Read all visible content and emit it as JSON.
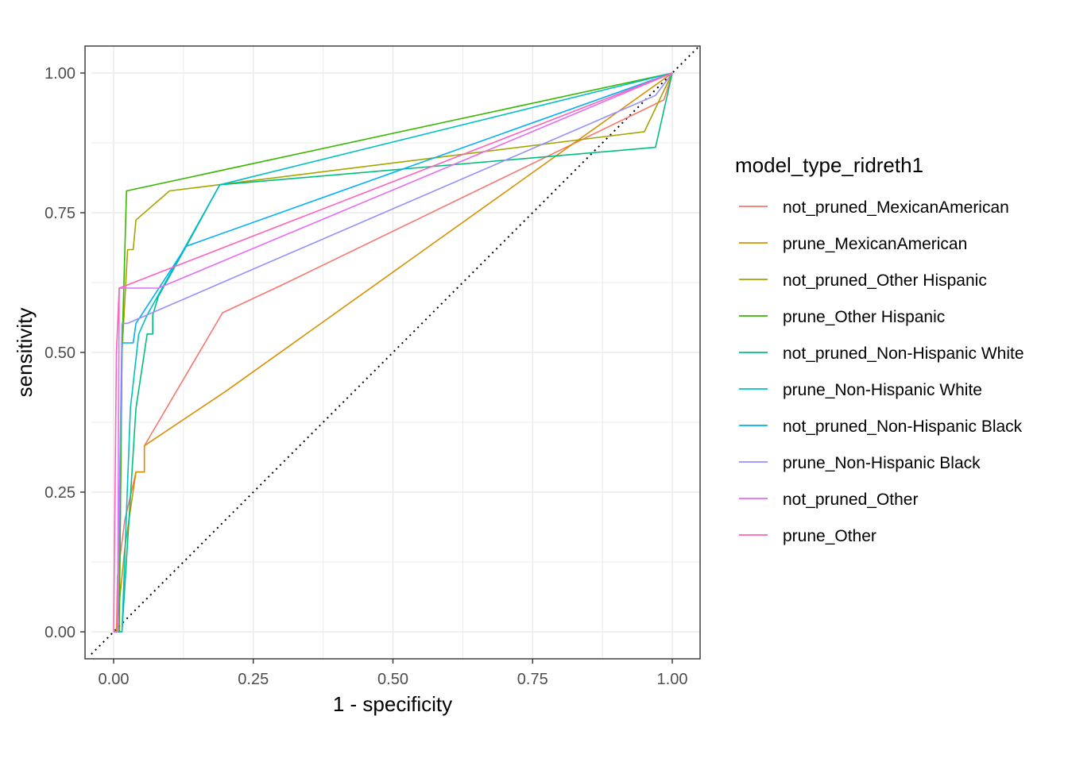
{
  "chart_data": {
    "type": "line",
    "title": "",
    "xlabel": "1 - specificity",
    "ylabel": "sensitivity",
    "xlim": [
      -0.04,
      1.05
    ],
    "ylim": [
      -0.05,
      1.05
    ],
    "x_ticks": [
      "0.00",
      "0.25",
      "0.50",
      "0.75",
      "1.00"
    ],
    "y_ticks": [
      "0.00",
      "0.25",
      "0.50",
      "0.75",
      "1.00"
    ],
    "grid": true,
    "reference_line": "diagonal dotted",
    "legend": {
      "title": "model_type_ridreth1",
      "position": "right"
    },
    "series": [
      {
        "name": "not_pruned_MexicanAmerican",
        "color": "#F8766D",
        "points": [
          [
            0.0,
            0.0
          ],
          [
            0.005,
            0.0
          ],
          [
            0.007,
            0.1
          ],
          [
            0.02,
            0.2
          ],
          [
            0.04,
            0.286
          ],
          [
            0.055,
            0.286
          ],
          [
            0.055,
            0.333
          ],
          [
            0.195,
            0.571
          ],
          [
            0.3,
            0.62
          ],
          [
            0.985,
            0.952
          ],
          [
            1.0,
            1.0
          ]
        ]
      },
      {
        "name": "prune_MexicanAmerican",
        "color": "#D89000",
        "points": [
          [
            0.0,
            0.0
          ],
          [
            0.005,
            0.0
          ],
          [
            0.02,
            0.15
          ],
          [
            0.04,
            0.286
          ],
          [
            0.055,
            0.286
          ],
          [
            0.055,
            0.333
          ],
          [
            0.2,
            0.43
          ],
          [
            1.0,
            1.0
          ]
        ]
      },
      {
        "name": "not_pruned_Other Hispanic",
        "color": "#A3A500",
        "points": [
          [
            0.0,
            0.0
          ],
          [
            0.01,
            0.0
          ],
          [
            0.015,
            0.5
          ],
          [
            0.025,
            0.684
          ],
          [
            0.035,
            0.684
          ],
          [
            0.04,
            0.737
          ],
          [
            0.1,
            0.789
          ],
          [
            0.95,
            0.895
          ],
          [
            1.0,
            1.0
          ]
        ]
      },
      {
        "name": "prune_Other Hispanic",
        "color": "#39B600",
        "points": [
          [
            0.0,
            0.0
          ],
          [
            0.01,
            0.0
          ],
          [
            0.015,
            0.5
          ],
          [
            0.023,
            0.789
          ],
          [
            1.0,
            1.0
          ]
        ]
      },
      {
        "name": "not_pruned_Non-Hispanic White",
        "color": "#00BF7D",
        "points": [
          [
            0.0,
            0.0
          ],
          [
            0.015,
            0.0
          ],
          [
            0.04,
            0.4
          ],
          [
            0.06,
            0.533
          ],
          [
            0.07,
            0.533
          ],
          [
            0.07,
            0.567
          ],
          [
            0.08,
            0.6
          ],
          [
            0.13,
            0.69
          ],
          [
            0.19,
            0.8
          ],
          [
            0.97,
            0.867
          ],
          [
            1.0,
            1.0
          ]
        ]
      },
      {
        "name": "prune_Non-Hispanic White",
        "color": "#00BFC4",
        "points": [
          [
            0.0,
            0.0
          ],
          [
            0.015,
            0.0
          ],
          [
            0.03,
            0.4
          ],
          [
            0.045,
            0.533
          ],
          [
            0.06,
            0.567
          ],
          [
            0.19,
            0.8
          ],
          [
            1.0,
            1.0
          ]
        ]
      },
      {
        "name": "not_pruned_Non-Hispanic Black",
        "color": "#00B0F6",
        "points": [
          [
            0.0,
            0.0
          ],
          [
            0.007,
            0.0
          ],
          [
            0.015,
            0.517
          ],
          [
            0.035,
            0.517
          ],
          [
            0.04,
            0.552
          ],
          [
            0.13,
            0.69
          ],
          [
            1.0,
            1.0
          ]
        ]
      },
      {
        "name": "prune_Non-Hispanic Black",
        "color": "#9590FF",
        "points": [
          [
            0.0,
            0.0
          ],
          [
            0.007,
            0.0
          ],
          [
            0.015,
            0.552
          ],
          [
            0.025,
            0.552
          ],
          [
            0.97,
            0.96
          ],
          [
            1.0,
            1.0
          ]
        ]
      },
      {
        "name": "not_pruned_Other",
        "color": "#E76BF3",
        "points": [
          [
            0.0,
            0.0
          ],
          [
            0.007,
            0.0
          ],
          [
            0.01,
            0.615
          ],
          [
            0.08,
            0.615
          ],
          [
            1.0,
            1.0
          ]
        ]
      },
      {
        "name": "prune_Other",
        "color": "#FF62BC",
        "points": [
          [
            0.0,
            0.0
          ],
          [
            0.005,
            0.5
          ],
          [
            0.01,
            0.615
          ],
          [
            1.0,
            1.0
          ]
        ]
      }
    ]
  }
}
